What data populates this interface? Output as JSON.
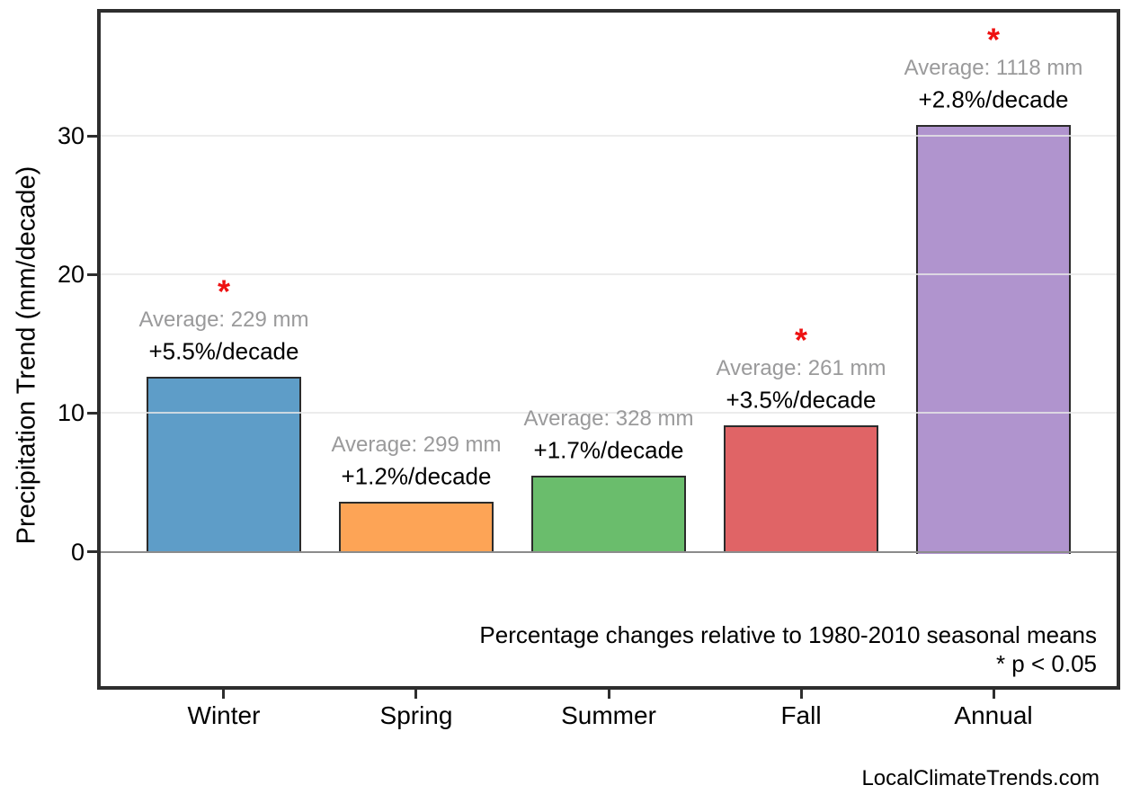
{
  "chart_data": {
    "type": "bar",
    "categories": [
      "Winter",
      "Spring",
      "Summer",
      "Fall",
      "Annual"
    ],
    "values": [
      12.6,
      3.6,
      5.5,
      9.1,
      30.8
    ],
    "bar_colors": [
      "#5e9dc8",
      "#fda456",
      "#6abd6c",
      "#e06466",
      "#b094ce"
    ],
    "bar_edge_color": "#2b2b2b",
    "annotations": [
      {
        "average": "Average: 229 mm",
        "percent": "+5.5%/decade",
        "significant": true
      },
      {
        "average": "Average: 299 mm",
        "percent": "+1.2%/decade",
        "significant": false
      },
      {
        "average": "Average: 328 mm",
        "percent": "+1.7%/decade",
        "significant": false
      },
      {
        "average": "Average: 261 mm",
        "percent": "+3.5%/decade",
        "significant": true
      },
      {
        "average": "Average: 1118 mm",
        "percent": "+2.8%/decade",
        "significant": true
      }
    ],
    "significance_marker": "*",
    "marker_color": "#ee1111",
    "average_text_color": "#9a9a9b",
    "percent_text_color": "#000000",
    "ylabel": "Precipitation Trend (mm/decade)",
    "xlabel": "",
    "yticks": [
      0,
      10,
      20,
      30
    ],
    "ylim": [
      -9.7,
      38.9
    ],
    "grid": "horizontal gridlines at y ticks, light gray, drawn over bars",
    "legend": "none",
    "footnote_line1": "Percentage changes relative to 1980-2010 seasonal means",
    "footnote_line2": "* p < 0.05",
    "watermark": "LocalClimateTrends.com"
  }
}
